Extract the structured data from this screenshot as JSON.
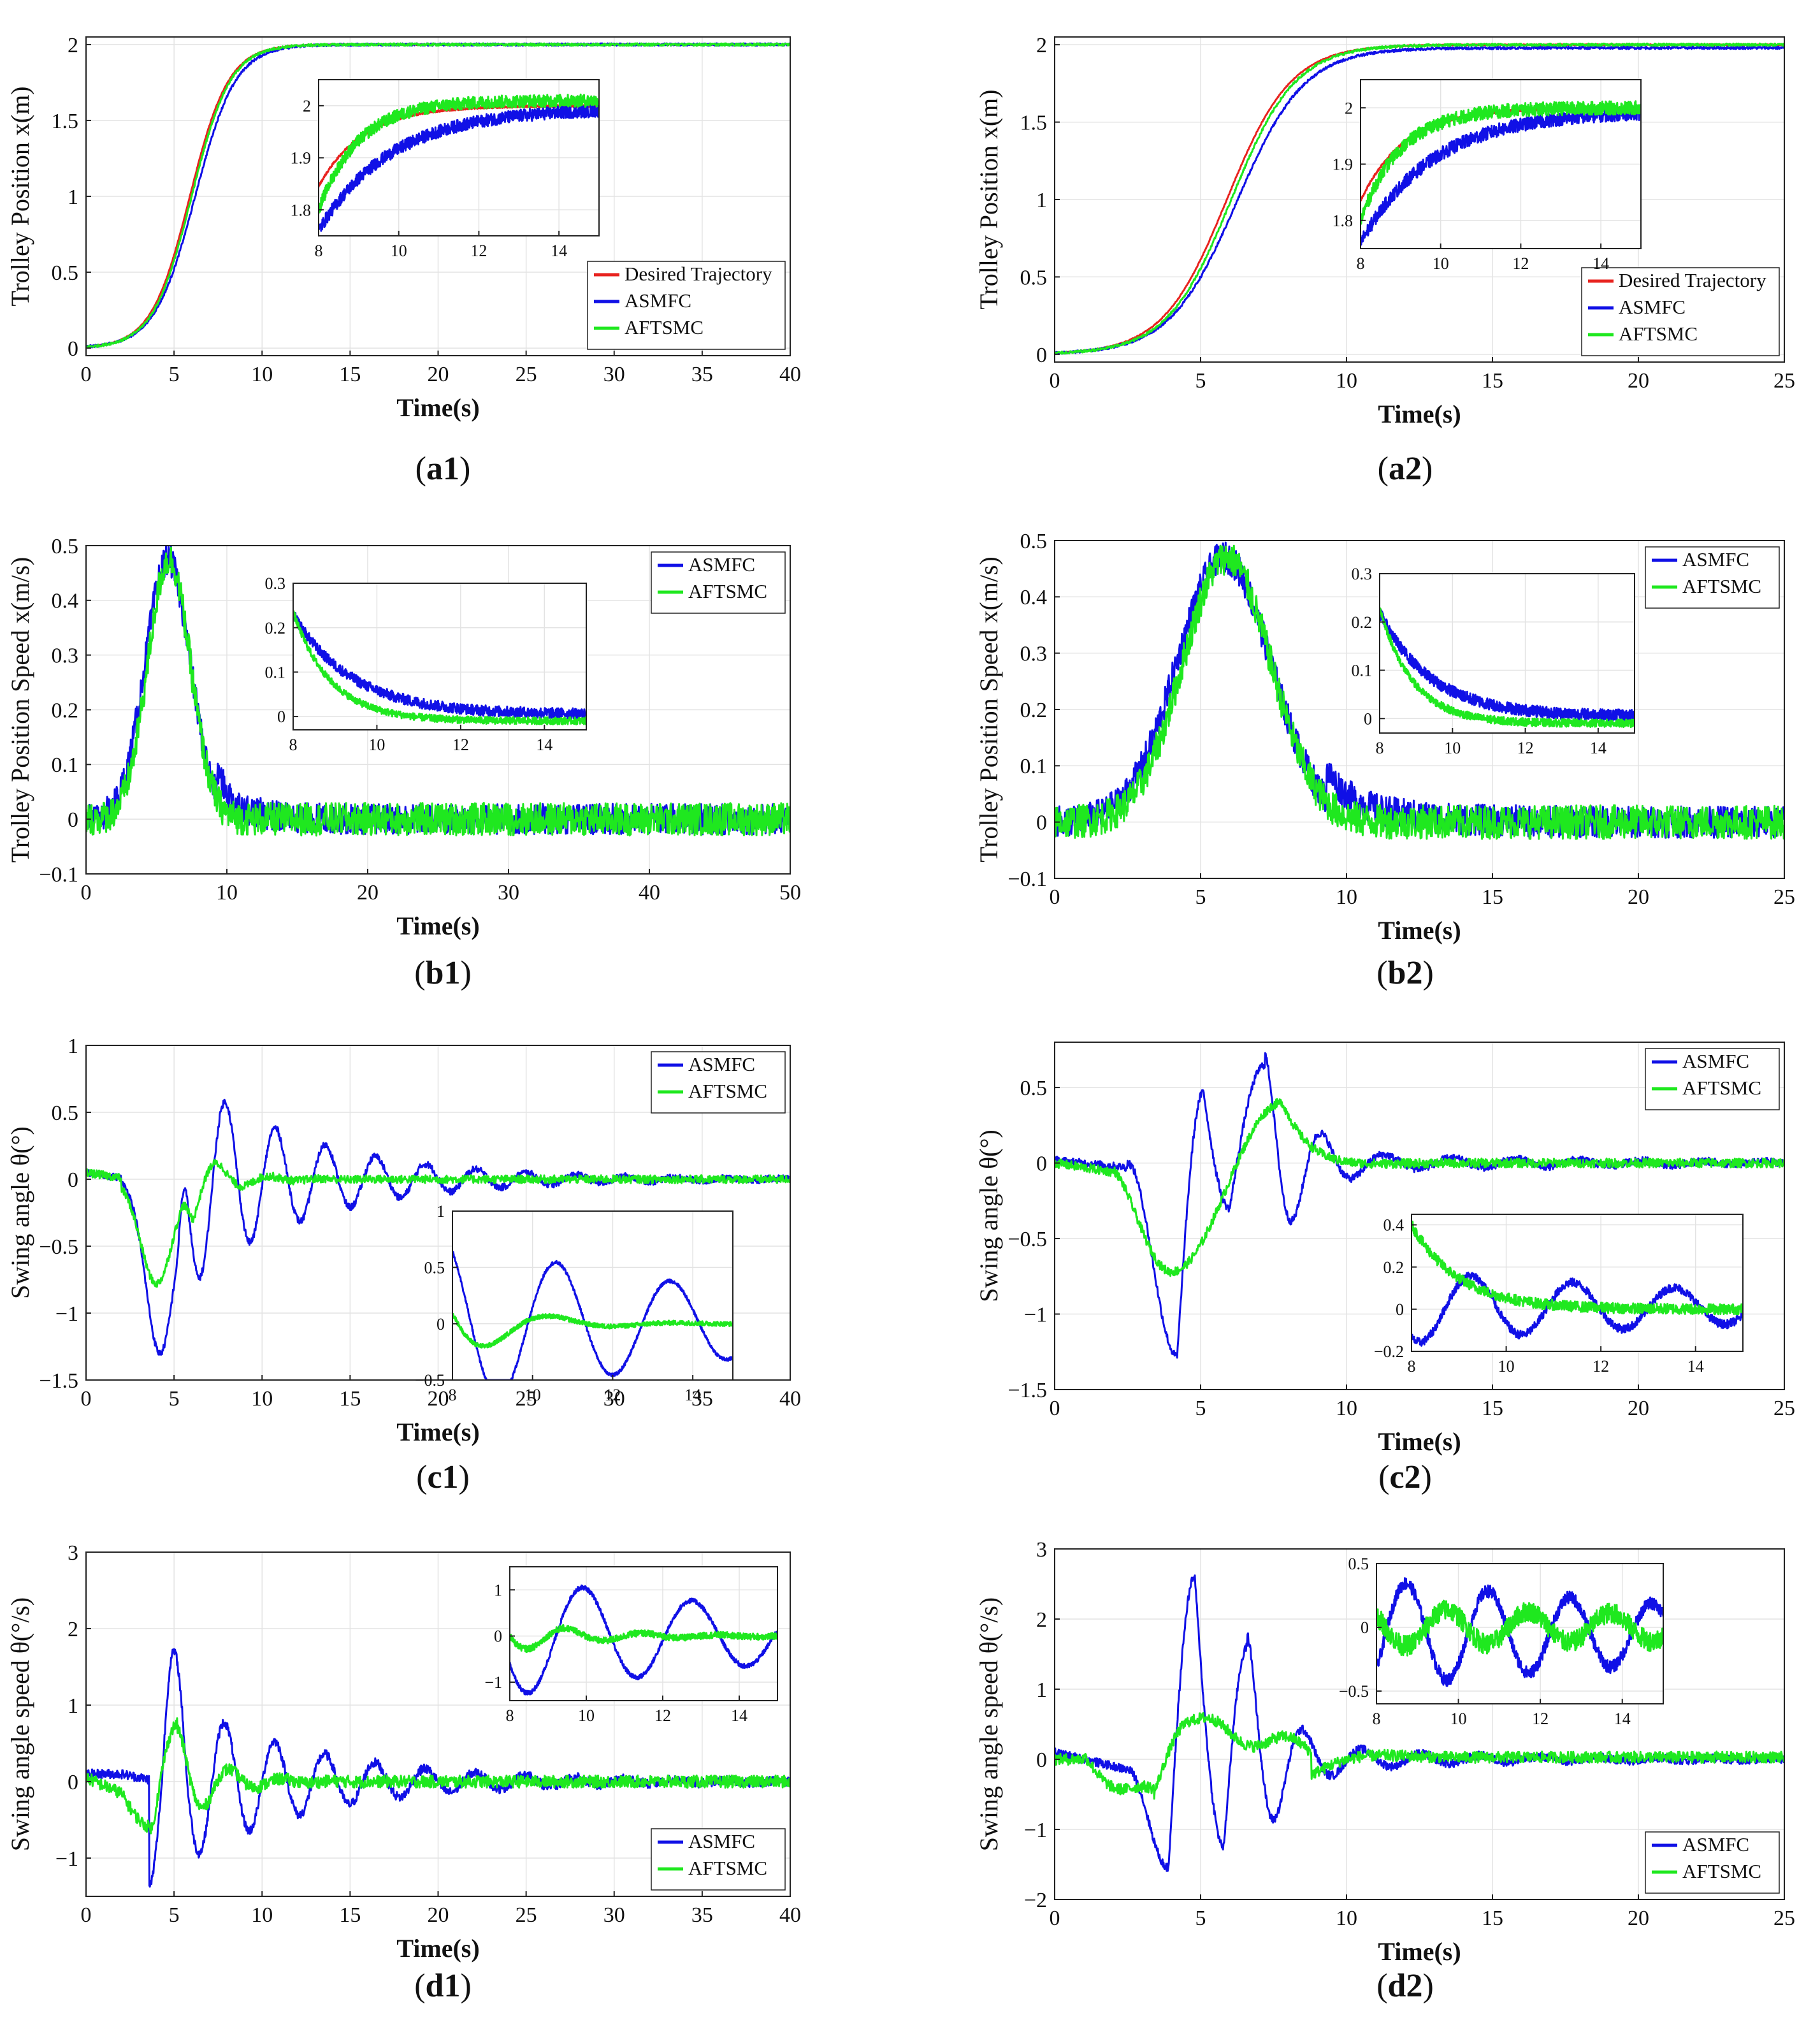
{
  "colors": {
    "desired": "#e8231f",
    "asmfc": "#1010e6",
    "aftsmc": "#1fe81f",
    "grid": "#e3e3e3",
    "axis": "#222222"
  },
  "labels": [
    "a1",
    "a2",
    "b1",
    "b2",
    "c1",
    "c2",
    "d1",
    "d2"
  ],
  "chart_data": [
    {
      "id": "a1",
      "type": "line",
      "xlabel": "Time(s)",
      "ylabel": "Trolley Position x(m)",
      "xlim": [
        0,
        40
      ],
      "ylim": [
        -0.05,
        2.05
      ],
      "xticks": [
        0,
        5,
        10,
        15,
        20,
        25,
        30,
        35,
        40
      ],
      "xtick_labels": [
        "0",
        "5",
        "10",
        "15",
        "20",
        "25",
        "30",
        "35",
        "40"
      ],
      "yticks": [
        0,
        0.5,
        1,
        1.5,
        2
      ],
      "ytick_labels": [
        "0",
        "0.5",
        "1",
        "1.5",
        "2"
      ],
      "legend": {
        "position": "bottom-right",
        "entries": [
          "Desired Trajectory",
          "ASMFC",
          "AFTSMC"
        ]
      },
      "series": [
        {
          "name": "Desired Trajectory",
          "color_key": "desired",
          "kind": "s_curve",
          "t0": 5.9,
          "tau": 1.1,
          "amp": 2.0,
          "noise": 0.003
        },
        {
          "name": "ASMFC",
          "color_key": "asmfc",
          "kind": "s_curve",
          "t0": 6.2,
          "tau": 1.15,
          "amp": 2.0,
          "noise": 0.008
        },
        {
          "name": "AFTSMC",
          "color_key": "aftsmc",
          "kind": "s_curve",
          "t0": 6.0,
          "tau": 1.1,
          "amp": 2.0,
          "noise": 0.008
        }
      ],
      "inset": {
        "xlim": [
          8,
          15
        ],
        "ylim": [
          1.75,
          2.05
        ],
        "xticks": [
          8,
          10,
          12,
          14
        ],
        "xtick_labels": [
          "8",
          "10",
          "12",
          "14"
        ],
        "yticks": [
          1.8,
          1.9,
          2.0
        ],
        "ytick_labels": [
          "1.8",
          "1.9",
          "2"
        ],
        "series": [
          {
            "name": "Desired Trajectory",
            "color_key": "desired",
            "kind": "approach",
            "start": 1.845,
            "end": 2.0,
            "tau": 1.1,
            "noise": 0.002
          },
          {
            "name": "ASMFC",
            "color_key": "asmfc",
            "kind": "approach",
            "start": 1.76,
            "end": 1.995,
            "tau": 1.8,
            "noise": 0.012
          },
          {
            "name": "AFTSMC",
            "color_key": "aftsmc",
            "kind": "approach",
            "start": 1.8,
            "end": 2.01,
            "tau": 1.0,
            "noise": 0.012
          }
        ]
      }
    },
    {
      "id": "a2",
      "type": "line",
      "xlabel": "Time(s)",
      "ylabel": "Trolley Position x(m)",
      "xlim": [
        0,
        25
      ],
      "ylim": [
        -0.05,
        2.05
      ],
      "xticks": [
        0,
        5,
        10,
        15,
        20,
        25
      ],
      "xtick_labels": [
        "0",
        "5",
        "10",
        "15",
        "20",
        "25"
      ],
      "yticks": [
        0,
        0.5,
        1,
        1.5,
        2
      ],
      "ytick_labels": [
        "0",
        "0.5",
        "1",
        "1.5",
        "2"
      ],
      "legend": {
        "position": "bottom-right",
        "entries": [
          "Desired Trajectory",
          "ASMFC",
          "AFTSMC"
        ]
      },
      "series": [
        {
          "name": "Desired Trajectory",
          "color_key": "desired",
          "kind": "s_curve",
          "t0": 5.9,
          "tau": 1.1,
          "amp": 2.0,
          "noise": 0.003
        },
        {
          "name": "ASMFC",
          "color_key": "asmfc",
          "kind": "s_curve",
          "t0": 6.25,
          "tau": 1.15,
          "amp": 1.98,
          "noise": 0.008
        },
        {
          "name": "AFTSMC",
          "color_key": "aftsmc",
          "kind": "s_curve",
          "t0": 6.05,
          "tau": 1.1,
          "amp": 2.0,
          "noise": 0.008
        }
      ],
      "inset": {
        "xlim": [
          8,
          15
        ],
        "ylim": [
          1.75,
          2.05
        ],
        "xticks": [
          8,
          10,
          12,
          14
        ],
        "xtick_labels": [
          "8",
          "10",
          "12",
          "14"
        ],
        "yticks": [
          1.8,
          1.9,
          2.0
        ],
        "ytick_labels": [
          "1.8",
          "1.9",
          "2"
        ],
        "series": [
          {
            "name": "Desired Trajectory",
            "color_key": "desired",
            "kind": "approach",
            "start": 1.835,
            "end": 2.0,
            "tau": 1.1,
            "noise": 0.002
          },
          {
            "name": "ASMFC",
            "color_key": "asmfc",
            "kind": "approach",
            "start": 1.76,
            "end": 1.995,
            "tau": 1.8,
            "noise": 0.012
          },
          {
            "name": "AFTSMC",
            "color_key": "aftsmc",
            "kind": "approach",
            "start": 1.8,
            "end": 2.0,
            "tau": 1.0,
            "noise": 0.012
          }
        ]
      }
    },
    {
      "id": "b1",
      "type": "line",
      "xlabel": "Time(s)",
      "ylabel": "Trolley Position Speed x(m/s)",
      "xlim": [
        0,
        50
      ],
      "ylim": [
        -0.1,
        0.5
      ],
      "xticks": [
        0,
        10,
        20,
        30,
        40,
        50
      ],
      "xtick_labels": [
        "0",
        "10",
        "20",
        "30",
        "40",
        "50"
      ],
      "yticks": [
        -0.1,
        0,
        0.1,
        0.2,
        0.3,
        0.4,
        0.5
      ],
      "ytick_labels": [
        "−0.1",
        "0",
        "0.1",
        "0.2",
        "0.3",
        "0.4",
        "0.5"
      ],
      "legend": {
        "position": "top-right",
        "entries": [
          "ASMFC",
          "AFTSMC"
        ]
      },
      "series": [
        {
          "name": "ASMFC",
          "color_key": "asmfc",
          "kind": "bell",
          "t0": 5.8,
          "sigma": 1.6,
          "amp": 0.475,
          "tail_amp": 0.05,
          "tail_tau": 2.0,
          "noise": 0.028
        },
        {
          "name": "AFTSMC",
          "color_key": "aftsmc",
          "kind": "bell",
          "t0": 5.9,
          "sigma": 1.5,
          "amp": 0.475,
          "tail_amp": 0.0,
          "tail_tau": 1.0,
          "noise": 0.03
        }
      ],
      "inset": {
        "xlim": [
          8,
          15
        ],
        "ylim": [
          -0.03,
          0.3
        ],
        "xticks": [
          8,
          10,
          12,
          14
        ],
        "xtick_labels": [
          "8",
          "10",
          "12",
          "14"
        ],
        "yticks": [
          0,
          0.1,
          0.2,
          0.3
        ],
        "ytick_labels": [
          "0",
          "0.1",
          "0.2",
          "0.3"
        ],
        "series": [
          {
            "name": "ASMFC",
            "color_key": "asmfc",
            "kind": "approach",
            "start": 0.23,
            "end": 0.005,
            "tau": 1.4,
            "noise": 0.012
          },
          {
            "name": "AFTSMC",
            "color_key": "aftsmc",
            "kind": "approach",
            "start": 0.235,
            "end": -0.01,
            "tau": 0.9,
            "noise": 0.008
          }
        ]
      }
    },
    {
      "id": "b2",
      "type": "line",
      "xlabel": "Time(s)",
      "ylabel": "Trolley Position Speed x(m/s)",
      "xlim": [
        0,
        25
      ],
      "ylim": [
        -0.1,
        0.5
      ],
      "xticks": [
        0,
        5,
        10,
        15,
        20,
        25
      ],
      "xtick_labels": [
        "0",
        "5",
        "10",
        "15",
        "20",
        "25"
      ],
      "yticks": [
        -0.1,
        0,
        0.1,
        0.2,
        0.3,
        0.4,
        0.5
      ],
      "ytick_labels": [
        "−0.1",
        "0",
        "0.1",
        "0.2",
        "0.3",
        "0.4",
        "0.5"
      ],
      "legend": {
        "position": "top-right",
        "entries": [
          "ASMFC",
          "AFTSMC"
        ]
      },
      "series": [
        {
          "name": "ASMFC",
          "color_key": "asmfc",
          "kind": "bell",
          "t0": 5.8,
          "sigma": 1.6,
          "amp": 0.47,
          "tail_amp": 0.05,
          "tail_tau": 2.0,
          "noise": 0.028
        },
        {
          "name": "AFTSMC",
          "color_key": "aftsmc",
          "kind": "bell",
          "t0": 5.9,
          "sigma": 1.5,
          "amp": 0.47,
          "tail_amp": 0.0,
          "tail_tau": 1.0,
          "noise": 0.03
        }
      ],
      "inset": {
        "xlim": [
          8,
          15
        ],
        "ylim": [
          -0.03,
          0.3
        ],
        "xticks": [
          8,
          10,
          12,
          14
        ],
        "xtick_labels": [
          "8",
          "10",
          "12",
          "14"
        ],
        "yticks": [
          0,
          0.1,
          0.2,
          0.3
        ],
        "ytick_labels": [
          "0",
          "0.1",
          "0.2",
          "0.3"
        ],
        "series": [
          {
            "name": "ASMFC",
            "color_key": "asmfc",
            "kind": "approach",
            "start": 0.22,
            "end": 0.005,
            "tau": 1.4,
            "noise": 0.012
          },
          {
            "name": "AFTSMC",
            "color_key": "aftsmc",
            "kind": "approach",
            "start": 0.23,
            "end": -0.01,
            "tau": 0.9,
            "noise": 0.008
          }
        ]
      }
    },
    {
      "id": "c1",
      "type": "line",
      "xlabel": "Time(s)",
      "ylabel": "Swing angle θ(°)",
      "xlim": [
        0,
        40
      ],
      "ylim": [
        -1.5,
        1.0
      ],
      "xticks": [
        0,
        5,
        10,
        15,
        20,
        25,
        30,
        35,
        40
      ],
      "xtick_labels": [
        "0",
        "5",
        "10",
        "15",
        "20",
        "25",
        "30",
        "35",
        "40"
      ],
      "yticks": [
        -1.5,
        -1,
        -0.5,
        0,
        0.5,
        1
      ],
      "ytick_labels": [
        "−1.5",
        "−1",
        "−0.5",
        "0",
        "0.5",
        "1"
      ],
      "legend": {
        "position": "top-right",
        "entries": [
          "ASMFC",
          "AFTSMC"
        ]
      },
      "series": [
        {
          "name": "ASMFC",
          "color_key": "asmfc",
          "kind": "swing",
          "dip_t": 4.2,
          "dip_amp": -1.3,
          "dip_w": 0.8,
          "osc_start": 5.2,
          "osc_amp": 0.85,
          "osc_period": 2.85,
          "osc_phase": 0.3,
          "decay": 7.0,
          "noise": 0.025
        },
        {
          "name": "AFTSMC",
          "color_key": "aftsmc",
          "kind": "swing",
          "dip_t": 4.0,
          "dip_amp": -0.78,
          "dip_w": 0.9,
          "osc_start": 5.5,
          "osc_amp": 0.35,
          "osc_period": 3.0,
          "osc_phase": 2.1,
          "decay": 1.8,
          "noise": 0.03
        }
      ],
      "inset": {
        "xlim": [
          8,
          15
        ],
        "ylim": [
          -0.5,
          1.0
        ],
        "xticks": [
          8,
          10,
          12,
          14
        ],
        "xtick_labels": [
          "8",
          "10",
          "12",
          "14"
        ],
        "yticks": [
          -0.5,
          0,
          0.5,
          1
        ],
        "ytick_labels": [
          "−0.5",
          "0",
          "0.5",
          "1"
        ],
        "series": [
          {
            "name": "ASMFC",
            "color_key": "asmfc",
            "kind": "damped",
            "amp": 0.75,
            "period": 2.85,
            "phase": 0.55,
            "decay": 8.0,
            "offset": 0.0,
            "noise": 0.015
          },
          {
            "name": "AFTSMC",
            "color_key": "aftsmc",
            "kind": "damped",
            "amp": 0.35,
            "period": 3.2,
            "phase": 1.3,
            "decay": 1.5,
            "offset": 0.0,
            "noise": 0.02
          }
        ]
      }
    },
    {
      "id": "c2",
      "type": "line",
      "xlabel": "Time(s)",
      "ylabel": "Swing angle θ(°)",
      "xlim": [
        0,
        25
      ],
      "ylim": [
        -1.5,
        0.8
      ],
      "xticks": [
        0,
        5,
        10,
        15,
        20,
        25
      ],
      "xtick_labels": [
        "0",
        "5",
        "10",
        "15",
        "20",
        "25"
      ],
      "yticks": [
        -1.5,
        -1,
        -0.5,
        0,
        0.5
      ],
      "ytick_labels": [
        "−1.5",
        "−1",
        "−0.5",
        "0",
        "0.5"
      ],
      "legend": {
        "position": "top-right",
        "entries": [
          "ASMFC",
          "AFTSMC"
        ]
      },
      "series": [
        {
          "name": "ASMFC",
          "color_key": "asmfc",
          "kind": "swing2",
          "noise": 0.025
        },
        {
          "name": "AFTSMC",
          "color_key": "aftsmc",
          "kind": "swing2b",
          "noise": 0.03
        }
      ],
      "inset": {
        "xlim": [
          8,
          15
        ],
        "ylim": [
          -0.2,
          0.45
        ],
        "xticks": [
          8,
          10,
          12,
          14
        ],
        "xtick_labels": [
          "8",
          "10",
          "12",
          "14"
        ],
        "yticks": [
          -0.2,
          0,
          0.2,
          0.4
        ],
        "ytick_labels": [
          "−0.2",
          "0",
          "0.2",
          "0.4"
        ],
        "series": [
          {
            "name": "ASMFC",
            "color_key": "asmfc",
            "kind": "damped",
            "amp": 0.17,
            "period": 2.15,
            "phase": 2.6,
            "decay": 9.0,
            "offset": 0.01,
            "noise": 0.02
          },
          {
            "name": "AFTSMC",
            "color_key": "aftsmc",
            "kind": "approach",
            "start": 0.4,
            "end": 0.0,
            "tau": 1.0,
            "noise": 0.025
          }
        ]
      }
    },
    {
      "id": "d1",
      "type": "line",
      "xlabel": "Time(s)",
      "ylabel": "Swing angle speed θ(°/s)",
      "xlim": [
        0,
        40
      ],
      "ylim": [
        -1.5,
        3.0
      ],
      "xticks": [
        0,
        5,
        10,
        15,
        20,
        25,
        30,
        35,
        40
      ],
      "xtick_labels": [
        "0",
        "5",
        "10",
        "15",
        "20",
        "25",
        "30",
        "35",
        "40"
      ],
      "yticks": [
        -1,
        0,
        1,
        2,
        3
      ],
      "ytick_labels": [
        "−1",
        "0",
        "1",
        "2",
        "3"
      ],
      "legend": {
        "position": "bottom-right",
        "entries": [
          "ASMFC",
          "AFTSMC"
        ]
      },
      "series": [
        {
          "name": "ASMFC",
          "color_key": "asmfc",
          "kind": "swing_speed",
          "amp": 2.1,
          "period": 2.85,
          "start": 3.6,
          "decay": 7.5,
          "noise": 0.06
        },
        {
          "name": "AFTSMC",
          "color_key": "aftsmc",
          "kind": "swing_speed_b",
          "noise": 0.08
        }
      ],
      "inset": {
        "xlim": [
          8,
          15
        ],
        "ylim": [
          -1.4,
          1.5
        ],
        "xticks": [
          8,
          10,
          12,
          14
        ],
        "xtick_labels": [
          "8",
          "10",
          "12",
          "14"
        ],
        "yticks": [
          -1,
          0,
          1
        ],
        "ytick_labels": [
          "−1",
          "0",
          "1"
        ],
        "series": [
          {
            "name": "ASMFC",
            "color_key": "asmfc",
            "kind": "damped",
            "amp": 1.3,
            "period": 2.85,
            "phase": 2.05,
            "decay": 9.0,
            "offset": 0.0,
            "noise": 0.05
          },
          {
            "name": "AFTSMC",
            "color_key": "aftsmc",
            "kind": "damped",
            "amp": 0.35,
            "period": 2.0,
            "phase": 1.6,
            "decay": 2.0,
            "offset": 0.0,
            "noise": 0.07
          }
        ]
      }
    },
    {
      "id": "d2",
      "type": "line",
      "xlabel": "Time(s)",
      "ylabel": "Swing angle speed θ(°/s)",
      "xlim": [
        0,
        25
      ],
      "ylim": [
        -2.0,
        3.0
      ],
      "xticks": [
        0,
        5,
        10,
        15,
        20,
        25
      ],
      "xtick_labels": [
        "0",
        "5",
        "10",
        "15",
        "20",
        "25"
      ],
      "yticks": [
        -2,
        -1,
        0,
        1,
        2,
        3
      ],
      "ytick_labels": [
        "−2",
        "−1",
        "0",
        "1",
        "2",
        "3"
      ],
      "legend": {
        "position": "bottom-right",
        "entries": [
          "ASMFC",
          "AFTSMC"
        ]
      },
      "series": [
        {
          "name": "ASMFC",
          "color_key": "asmfc",
          "kind": "swing_speed2",
          "noise": 0.06
        },
        {
          "name": "AFTSMC",
          "color_key": "aftsmc",
          "kind": "swing_speed2b",
          "noise": 0.08
        }
      ],
      "inset": {
        "xlim": [
          8,
          15
        ],
        "ylim": [
          -0.6,
          0.5
        ],
        "xticks": [
          8,
          10,
          12,
          14
        ],
        "xtick_labels": [
          "8",
          "10",
          "12",
          "14"
        ],
        "yticks": [
          -0.5,
          0,
          0.5
        ],
        "ytick_labels": [
          "−0.5",
          "0",
          "0.5"
        ],
        "series": [
          {
            "name": "ASMFC",
            "color_key": "asmfc",
            "kind": "damped",
            "amp": 0.42,
            "period": 2.0,
            "phase": 4.0,
            "decay": 12.0,
            "offset": -0.05,
            "noise": 0.05
          },
          {
            "name": "AFTSMC",
            "color_key": "aftsmc",
            "kind": "damped",
            "amp": 0.15,
            "period": 2.0,
            "phase": 0.9,
            "decay": 20.0,
            "offset": 0.0,
            "noise": 0.08
          }
        ]
      }
    }
  ]
}
